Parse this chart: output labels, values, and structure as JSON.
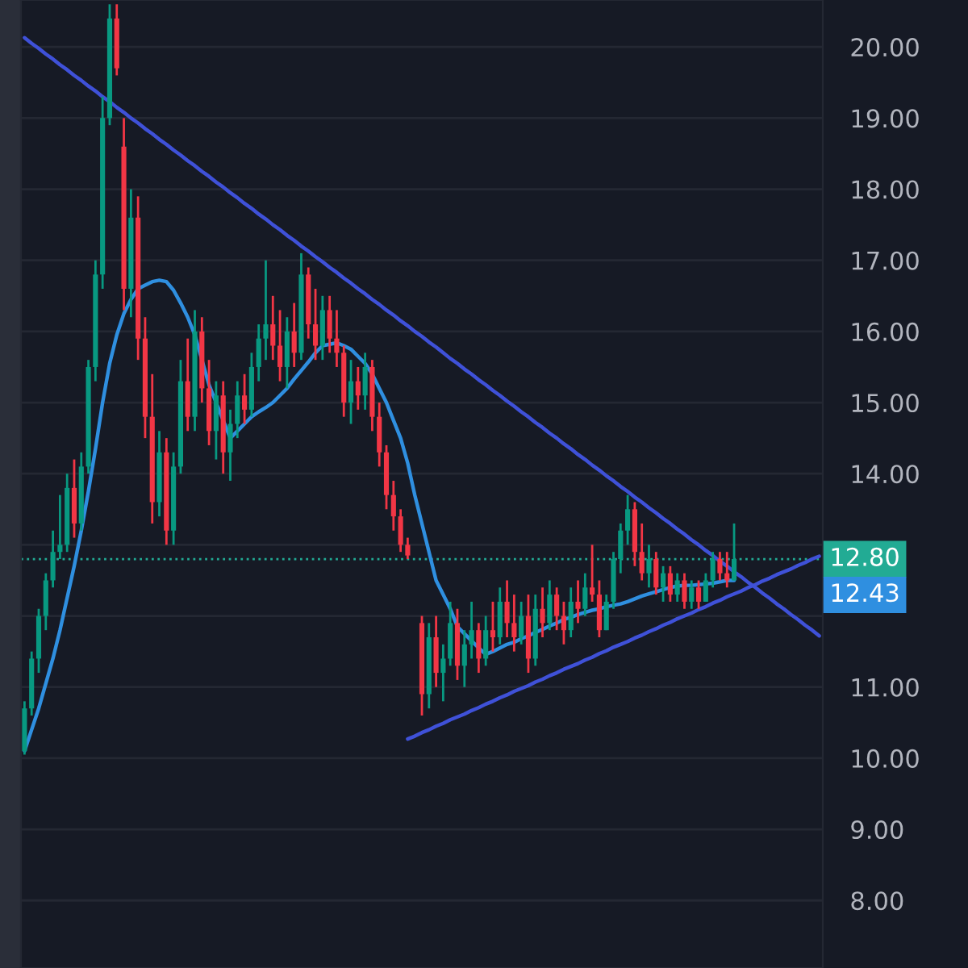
{
  "chart_data": {
    "type": "candlestick",
    "categories": [
      null,
      null,
      null,
      null,
      null,
      null,
      null,
      null,
      null,
      null,
      null,
      null,
      null,
      null,
      null,
      null,
      null,
      null,
      null,
      null,
      null,
      null,
      null,
      null,
      null,
      null,
      null,
      null,
      null,
      null,
      null,
      null,
      null,
      null,
      null,
      null,
      null,
      null,
      null,
      null,
      null,
      null,
      null,
      null,
      null,
      null,
      null,
      null,
      null,
      null,
      null,
      null,
      null,
      null,
      null,
      null,
      null,
      null,
      null,
      null,
      null,
      null,
      null,
      null,
      null,
      null,
      null,
      null,
      null,
      null,
      null,
      null,
      null,
      null,
      null,
      null,
      null,
      null,
      null,
      null,
      null,
      null,
      null,
      null,
      null,
      null,
      null,
      null,
      null,
      null,
      null,
      null,
      null,
      null,
      null,
      null,
      null,
      null,
      null,
      null,
      null,
      null,
      null,
      null,
      null,
      null,
      null,
      null,
      null,
      null,
      null,
      null,
      null
    ],
    "ohlc": [
      [
        10.1,
        10.8,
        10.05,
        10.7
      ],
      [
        10.7,
        11.5,
        10.6,
        11.4
      ],
      [
        11.4,
        12.1,
        11.2,
        12.0
      ],
      [
        12.0,
        12.6,
        11.8,
        12.5
      ],
      [
        12.5,
        13.2,
        12.4,
        12.9
      ],
      [
        12.9,
        13.7,
        12.8,
        13.0
      ],
      [
        13.0,
        14.0,
        12.9,
        13.8
      ],
      [
        13.8,
        14.2,
        13.1,
        13.3
      ],
      [
        13.3,
        14.3,
        13.2,
        14.1
      ],
      [
        14.1,
        15.6,
        14.0,
        15.5
      ],
      [
        15.5,
        17.0,
        15.3,
        16.8
      ],
      [
        16.8,
        19.3,
        16.6,
        19.0
      ],
      [
        19.0,
        20.6,
        18.9,
        20.4
      ],
      [
        20.4,
        20.6,
        19.6,
        19.7
      ],
      [
        18.6,
        19.0,
        16.3,
        16.6
      ],
      [
        16.6,
        18.0,
        16.2,
        17.6
      ],
      [
        17.6,
        17.9,
        15.6,
        15.9
      ],
      [
        15.9,
        16.2,
        14.5,
        14.8
      ],
      [
        14.8,
        15.4,
        13.3,
        13.6
      ],
      [
        13.6,
        14.6,
        13.4,
        14.3
      ],
      [
        14.3,
        14.5,
        13.0,
        13.2
      ],
      [
        13.2,
        14.3,
        13.0,
        14.1
      ],
      [
        14.1,
        15.6,
        14.0,
        15.3
      ],
      [
        15.3,
        15.9,
        14.6,
        14.8
      ],
      [
        14.8,
        16.3,
        14.6,
        16.0
      ],
      [
        16.0,
        16.2,
        15.0,
        15.2
      ],
      [
        15.2,
        15.6,
        14.4,
        14.6
      ],
      [
        14.6,
        15.3,
        14.2,
        15.1
      ],
      [
        15.1,
        15.3,
        14.0,
        14.3
      ],
      [
        14.3,
        14.9,
        13.9,
        14.7
      ],
      [
        14.7,
        15.3,
        14.5,
        15.1
      ],
      [
        15.1,
        15.4,
        14.7,
        14.9
      ],
      [
        14.9,
        15.7,
        14.8,
        15.5
      ],
      [
        15.5,
        16.1,
        15.3,
        15.9
      ],
      [
        15.9,
        17.0,
        15.6,
        16.1
      ],
      [
        16.1,
        16.5,
        15.6,
        15.8
      ],
      [
        15.8,
        16.3,
        15.3,
        15.5
      ],
      [
        15.5,
        16.2,
        15.2,
        16.0
      ],
      [
        16.0,
        16.4,
        15.5,
        15.7
      ],
      [
        15.7,
        17.1,
        15.6,
        16.8
      ],
      [
        16.8,
        16.9,
        15.9,
        16.1
      ],
      [
        16.1,
        16.6,
        15.6,
        15.8
      ],
      [
        15.8,
        16.5,
        15.6,
        16.3
      ],
      [
        16.3,
        16.5,
        15.7,
        15.9
      ],
      [
        15.9,
        16.3,
        15.5,
        15.7
      ],
      [
        15.7,
        15.8,
        14.8,
        15.0
      ],
      [
        15.0,
        15.6,
        14.7,
        15.3
      ],
      [
        15.3,
        15.5,
        14.9,
        15.1
      ],
      [
        15.1,
        15.7,
        14.9,
        15.5
      ],
      [
        15.5,
        15.6,
        14.6,
        14.8
      ],
      [
        14.8,
        15.0,
        14.1,
        14.3
      ],
      [
        14.3,
        14.4,
        13.5,
        13.7
      ],
      [
        13.7,
        13.9,
        13.2,
        13.4
      ],
      [
        13.4,
        13.5,
        12.9,
        13.0
      ],
      [
        13.0,
        13.1,
        12.8,
        12.85
      ],
      null,
      [
        11.9,
        12.0,
        10.6,
        10.9
      ],
      [
        10.9,
        11.9,
        10.7,
        11.7
      ],
      [
        11.7,
        12.0,
        11.0,
        11.2
      ],
      [
        11.2,
        11.6,
        10.8,
        11.4
      ],
      [
        11.4,
        12.2,
        11.3,
        11.9
      ],
      [
        11.9,
        12.1,
        11.1,
        11.3
      ],
      [
        11.3,
        11.8,
        11.0,
        11.6
      ],
      [
        11.6,
        12.2,
        11.4,
        11.8
      ],
      [
        11.8,
        11.9,
        11.2,
        11.4
      ],
      [
        11.4,
        12.0,
        11.3,
        11.8
      ],
      [
        11.8,
        12.2,
        11.5,
        11.7
      ],
      [
        11.7,
        12.4,
        11.6,
        12.2
      ],
      [
        12.2,
        12.5,
        11.7,
        11.9
      ],
      [
        11.9,
        12.3,
        11.5,
        11.7
      ],
      [
        11.7,
        12.2,
        11.6,
        12.0
      ],
      [
        12.0,
        12.3,
        11.2,
        11.4
      ],
      [
        11.4,
        12.3,
        11.3,
        12.1
      ],
      [
        12.1,
        12.4,
        11.7,
        11.9
      ],
      [
        11.9,
        12.5,
        11.8,
        12.3
      ],
      [
        12.3,
        12.4,
        11.8,
        12.0
      ],
      [
        12.0,
        12.2,
        11.6,
        11.8
      ],
      [
        11.8,
        12.4,
        11.7,
        12.2
      ],
      [
        12.2,
        12.5,
        11.9,
        12.1
      ],
      [
        12.1,
        12.6,
        12.0,
        12.4
      ],
      [
        12.4,
        13.0,
        12.2,
        12.3
      ],
      [
        12.3,
        12.5,
        11.7,
        11.8
      ],
      [
        11.8,
        12.3,
        11.8,
        12.2
      ],
      [
        12.2,
        12.9,
        12.1,
        12.8
      ],
      [
        12.8,
        13.3,
        12.6,
        13.2
      ],
      [
        13.2,
        13.7,
        13.0,
        13.5
      ],
      [
        13.5,
        13.6,
        12.7,
        12.9
      ],
      [
        12.9,
        13.3,
        12.5,
        12.6
      ],
      [
        12.6,
        13.0,
        12.4,
        12.8
      ],
      [
        12.8,
        12.9,
        12.3,
        12.4
      ],
      [
        12.4,
        12.7,
        12.2,
        12.6
      ],
      [
        12.6,
        12.7,
        12.2,
        12.3
      ],
      [
        12.3,
        12.6,
        12.2,
        12.5
      ],
      [
        12.5,
        12.6,
        12.1,
        12.2
      ],
      [
        12.2,
        12.5,
        12.1,
        12.4
      ],
      [
        12.4,
        12.5,
        12.1,
        12.2
      ],
      [
        12.2,
        12.6,
        12.2,
        12.5
      ],
      [
        12.5,
        12.9,
        12.4,
        12.8
      ],
      [
        12.8,
        12.9,
        12.5,
        12.6
      ],
      [
        12.6,
        12.9,
        12.4,
        12.5
      ],
      [
        12.5,
        13.3,
        12.5,
        12.8
      ],
      null,
      null,
      null,
      null,
      null,
      null,
      null,
      null,
      null,
      null,
      null,
      null
    ],
    "colors": [
      "#089981",
      "#089981",
      "#089981",
      "#089981",
      "#089981",
      "#089981",
      "#089981",
      "#f23645",
      "#089981",
      "#089981",
      "#089981",
      "#089981",
      "#089981",
      "#f23645",
      "#f23645",
      "#089981",
      "#f23645",
      "#f23645",
      "#f23645",
      "#089981",
      "#f23645",
      "#089981",
      "#089981",
      "#f23645",
      "#089981",
      "#f23645",
      "#f23645",
      "#089981",
      "#f23645",
      "#089981",
      "#089981",
      "#f23645",
      "#089981",
      "#089981",
      "#089981",
      "#f23645",
      "#f23645",
      "#089981",
      "#f23645",
      "#089981",
      "#f23645",
      "#f23645",
      "#089981",
      "#f23645",
      "#f23645",
      "#f23645",
      "#089981",
      "#f23645",
      "#089981",
      "#f23645",
      "#f23645",
      "#f23645",
      "#f23645",
      "#f23645",
      "#f23645",
      null,
      "#f23645",
      "#089981",
      "#f23645",
      "#089981",
      "#089981",
      "#f23645",
      "#089981",
      "#089981",
      "#f23645",
      "#089981",
      "#f23645",
      "#089981",
      "#f23645",
      "#f23645",
      "#089981",
      "#f23645",
      "#089981",
      "#f23645",
      "#089981",
      "#f23645",
      "#f23645",
      "#089981",
      "#f23645",
      "#089981",
      "#f23645",
      "#f23645",
      "#089981",
      "#089981",
      "#089981",
      "#089981",
      "#f23645",
      "#f23645",
      "#089981",
      "#f23645",
      "#089981",
      "#f23645",
      "#089981",
      "#f23645",
      "#089981",
      "#f23645",
      "#089981",
      "#089981",
      "#f23645",
      "#f23645",
      "#089981",
      null,
      null,
      null,
      null,
      null,
      null,
      null,
      null,
      null,
      null,
      null,
      null
    ],
    "series": [
      {
        "type": "line",
        "color": "#2f8fe0",
        "values": [
          10.1,
          10.4,
          10.7,
          11.05,
          11.4,
          11.8,
          12.25,
          12.7,
          13.2,
          13.75,
          14.35,
          15.0,
          15.55,
          15.95,
          16.25,
          16.45,
          16.6,
          16.65,
          16.7,
          16.72,
          16.7,
          16.58,
          16.4,
          16.2,
          15.95,
          15.6,
          15.25,
          15.0,
          14.75,
          14.5,
          14.6,
          14.7,
          14.8,
          14.87,
          14.93,
          15.0,
          15.1,
          15.2,
          15.33,
          15.45,
          15.57,
          15.7,
          15.8,
          15.82,
          15.84,
          15.8,
          15.75,
          15.65,
          15.55,
          15.4,
          15.2,
          15.0,
          14.75,
          14.5,
          14.15,
          13.7,
          13.3,
          12.9,
          12.5,
          12.3,
          12.1,
          11.85,
          11.75,
          11.65,
          11.55,
          11.46,
          11.5,
          11.55,
          11.6,
          11.63,
          11.68,
          11.72,
          11.77,
          11.81,
          11.86,
          11.9,
          11.95,
          11.98,
          12.02,
          12.05,
          12.08,
          12.1,
          12.13,
          12.15,
          12.17,
          12.2,
          12.24,
          12.28,
          12.31,
          12.34,
          12.37,
          12.4,
          12.42,
          12.43,
          12.43,
          12.44,
          12.45,
          12.46,
          12.48,
          12.5,
          12.5,
          null,
          null,
          null,
          null,
          null,
          null,
          null,
          null,
          null,
          null,
          null,
          null
        ]
      },
      {
        "type": "line",
        "color": "#3f51d8",
        "values": [
          20.13,
          20.05,
          19.98,
          19.9,
          19.83,
          19.75,
          19.68,
          19.6,
          19.53,
          19.45,
          19.38,
          19.3,
          19.23,
          19.15,
          19.08,
          19.0,
          18.93,
          18.85,
          18.78,
          18.7,
          18.63,
          18.55,
          18.48,
          18.4,
          18.33,
          18.25,
          18.18,
          18.1,
          18.03,
          17.95,
          17.88,
          17.8,
          17.73,
          17.65,
          17.58,
          17.5,
          17.43,
          17.35,
          17.28,
          17.2,
          17.13,
          17.05,
          16.98,
          16.9,
          16.83,
          16.75,
          16.68,
          16.6,
          16.53,
          16.45,
          16.38,
          16.3,
          16.23,
          16.15,
          16.08,
          16.0,
          15.93,
          15.85,
          15.78,
          15.7,
          15.62,
          15.55,
          15.47,
          15.4,
          15.32,
          15.25,
          15.17,
          15.1,
          15.02,
          14.95,
          14.87,
          14.8,
          14.72,
          14.65,
          14.57,
          14.5,
          14.42,
          14.35,
          14.27,
          14.2,
          14.12,
          14.05,
          13.97,
          13.9,
          13.82,
          13.75,
          13.67,
          13.6,
          13.52,
          13.45,
          13.37,
          13.3,
          13.22,
          13.15,
          13.07,
          13.0,
          12.92,
          12.85,
          12.77,
          12.7,
          12.62,
          12.55,
          12.47,
          12.4,
          12.32,
          12.25,
          12.17,
          12.1,
          12.02,
          11.95,
          11.87,
          11.8,
          11.72
        ]
      },
      {
        "type": "line",
        "color": "#3f51d8",
        "values": [
          null,
          null,
          null,
          null,
          null,
          null,
          null,
          null,
          null,
          null,
          null,
          null,
          null,
          null,
          null,
          null,
          null,
          null,
          null,
          null,
          null,
          null,
          null,
          null,
          null,
          null,
          null,
          null,
          null,
          null,
          null,
          null,
          null,
          null,
          null,
          null,
          null,
          null,
          null,
          null,
          null,
          null,
          null,
          null,
          null,
          null,
          null,
          null,
          null,
          null,
          null,
          null,
          null,
          null,
          10.27,
          10.31,
          10.36,
          10.4,
          10.45,
          10.49,
          10.54,
          10.58,
          10.62,
          10.67,
          10.71,
          10.76,
          10.8,
          10.85,
          10.89,
          10.94,
          10.98,
          11.02,
          11.07,
          11.11,
          11.16,
          11.2,
          11.25,
          11.29,
          11.33,
          11.38,
          11.42,
          11.47,
          11.51,
          11.56,
          11.6,
          11.64,
          11.69,
          11.73,
          11.78,
          11.82,
          11.87,
          11.91,
          11.96,
          12.0,
          12.04,
          12.09,
          12.13,
          12.18,
          12.22,
          12.27,
          12.31,
          12.35,
          12.4,
          12.44,
          12.49,
          12.53,
          12.58,
          12.62,
          12.66,
          12.71,
          12.75,
          12.8,
          12.84
        ]
      }
    ],
    "ref_lines": [
      {
        "axis": "y",
        "value": 12.8,
        "label": "12.80",
        "color": "#22ab94",
        "line_style": "dotted"
      }
    ],
    "annotations": [
      "12.43"
    ],
    "ylim": [
      7.05,
      20.66
    ],
    "yticks": [
      {
        "value": 8,
        "label": "8.00"
      },
      {
        "value": 9,
        "label": "9.00"
      },
      {
        "value": 10,
        "label": "10.00"
      },
      {
        "value": 11,
        "label": "11.00"
      },
      {
        "value": 12,
        "label": null
      },
      {
        "value": 13,
        "label": null
      },
      {
        "value": 14,
        "label": "14.00"
      },
      {
        "value": 15,
        "label": "15.00"
      },
      {
        "value": 16,
        "label": "16.00"
      },
      {
        "value": 17,
        "label": "17.00"
      },
      {
        "value": 18,
        "label": "18.00"
      },
      {
        "value": 19,
        "label": "19.00"
      },
      {
        "value": 20,
        "label": "20.00"
      }
    ],
    "tick_labels": "y",
    "grid": true
  }
}
